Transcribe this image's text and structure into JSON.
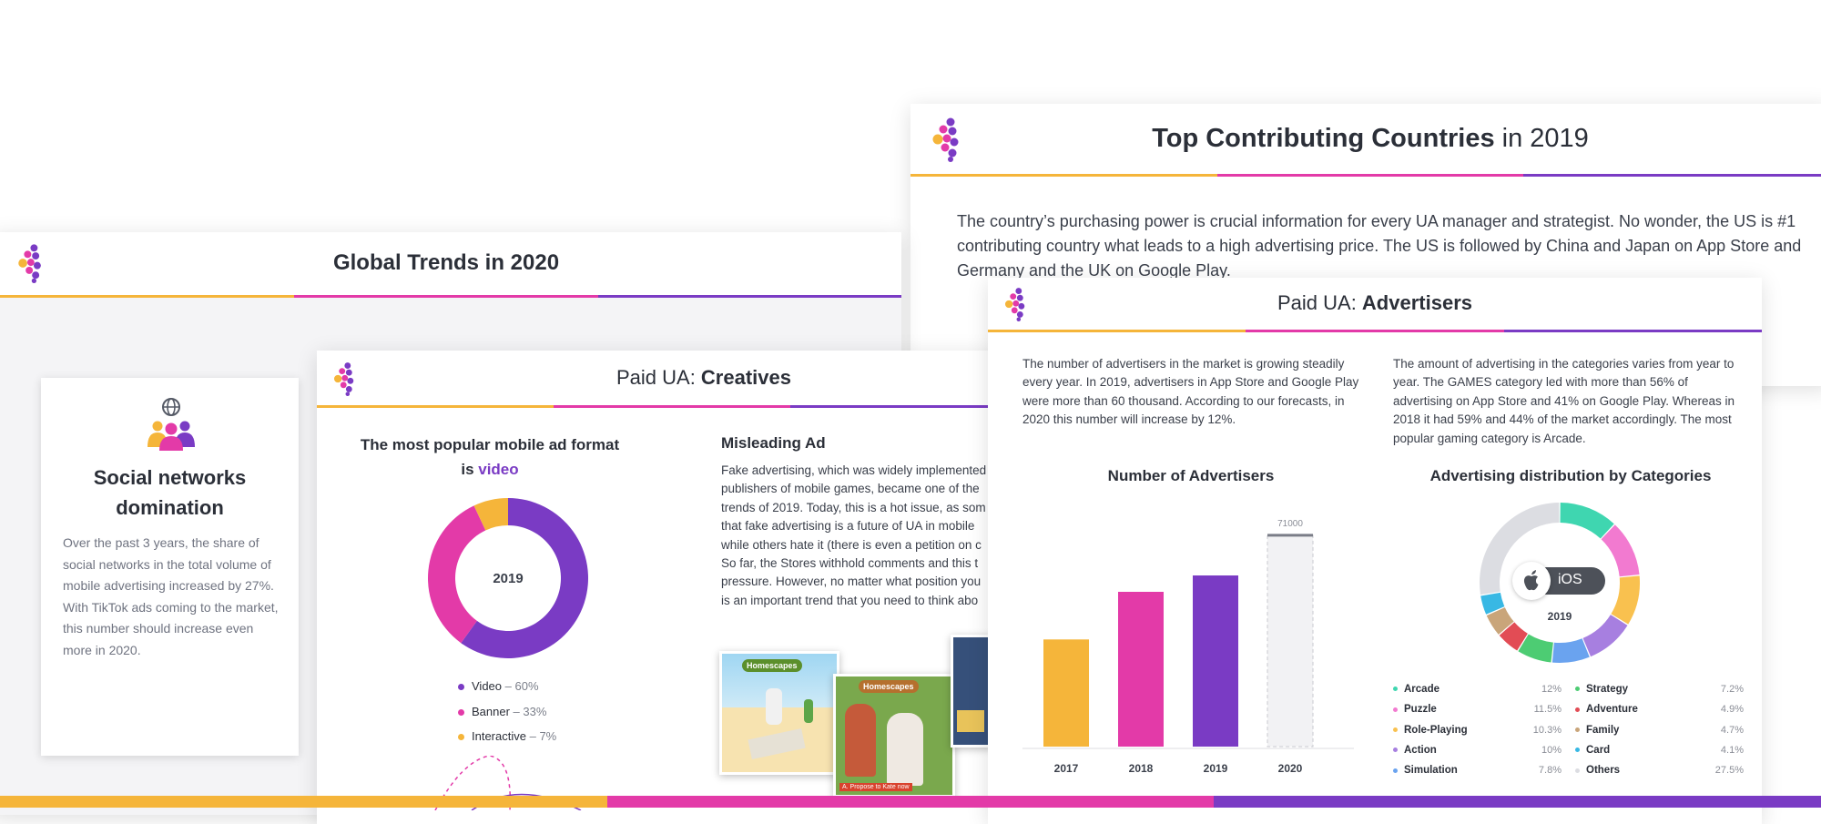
{
  "colors": {
    "yellow": "#f5b53a",
    "pink": "#e33aa8",
    "purple": "#7a3bc4"
  },
  "icons": {
    "logo": "brand-logo-icon",
    "globe": "globe-icon",
    "people": "people-group-icon",
    "apple": "apple-icon"
  },
  "card_countries": {
    "title_bold": "Top Contributing Countries",
    "title_rest": " in 2019",
    "text": "The country’s purchasing power is crucial information for every UA manager and strategist. No wonder, the US is #1 contributing country what leads to a high advertising price. The US is followed by China and Japan on App Store and Germany and the UK on Google Play."
  },
  "card_global": {
    "title": "Global Trends in 2020",
    "social_title": "Social networks domination",
    "social_text": "Over the past 3 years, the share of social networks in the total volume of mobile advertising increased by 27%. With TikTok ads coming to the market, this number should increase even more in 2020."
  },
  "card_creatives": {
    "title_rest": "Paid UA: ",
    "title_bold": "Creatives",
    "donut_title_1": "The most popular mobile ad format",
    "donut_title_2a": "is ",
    "donut_title_2b": "video",
    "donut_center": "2019",
    "legend": [
      {
        "name": "Video",
        "value": "– 60%",
        "color": "#7a3bc4"
      },
      {
        "name": "Banner",
        "value": "– 33%",
        "color": "#e33aa8"
      },
      {
        "name": "Interactive",
        "value": "– 7%",
        "color": "#f5b53a"
      }
    ],
    "misleading_title": "Misleading Ad",
    "misleading_lines": [
      "Fake advertising, which was widely implemented",
      "publishers of mobile games, became one of the",
      "trends of 2019. Today, this is a hot issue, as som",
      "that fake advertising is a future of UA in mobile",
      "while others hate it (there is even a petition on c",
      "So far, the Stores withhold comments and this t",
      "pressure. However, no matter what position you",
      "is an important trend that you need to think abo"
    ],
    "game_title": "Homescapes",
    "game_caption": "A. Propose to Kate now"
  },
  "card_advertisers": {
    "title_rest": "Paid UA: ",
    "title_bold": "Advertisers",
    "left_text": "The number of advertisers in the market is growing steadily every year. In 2019, advertisers in App Store and Google Play were more than 60 thousand. According to our forecasts, in 2020 this number will increase by 12%.",
    "right_text": "The amount of advertising in the categories varies from year to year. The GAMES category led with more than 56% of advertising on App Store and 41% on Google Play. Whereas in 2018 it had 59% and 44% of the market accordingly. The most popular gaming category is Arcade.",
    "donut_label": "iOS",
    "donut_year": "2019"
  },
  "chart_data": [
    {
      "type": "bar",
      "title": "Number of Advertisers",
      "categories": [
        "2017",
        "2018",
        "2019",
        "2020"
      ],
      "values": [
        36000,
        52000,
        57500,
        71000
      ],
      "value_labels": [
        "",
        "",
        "",
        "71000"
      ],
      "colors": [
        "#f5b53a",
        "#e33aa8",
        "#7a3bc4",
        "#f2f2f4"
      ],
      "ylim": [
        0,
        78000
      ],
      "grid": false
    },
    {
      "type": "pie",
      "title": "Advertising distribution by Categories",
      "slices": [
        {
          "name": "Arcade",
          "value_label": "12%",
          "value": 12,
          "color": "#3fd6b0"
        },
        {
          "name": "Puzzle",
          "value_label": "11.5%",
          "value": 11.5,
          "color": "#f27ad0"
        },
        {
          "name": "Role-Playing",
          "value_label": "10.3%",
          "value": 10.3,
          "color": "#f9c14f"
        },
        {
          "name": "Action",
          "value_label": "10%",
          "value": 10,
          "color": "#a77fe0"
        },
        {
          "name": "Simulation",
          "value_label": "7.8%",
          "value": 7.8,
          "color": "#6aa3ef"
        },
        {
          "name": "Strategy",
          "value_label": "7.2%",
          "value": 7.2,
          "color": "#4dcc73"
        },
        {
          "name": "Adventure",
          "value_label": "4.9%",
          "value": 4.9,
          "color": "#e24c55"
        },
        {
          "name": "Family",
          "value_label": "4.7%",
          "value": 4.7,
          "color": "#c9a57a"
        },
        {
          "name": "Card",
          "value_label": "4.1%",
          "value": 4.1,
          "color": "#38b8e4"
        },
        {
          "name": "Others",
          "value_label": "27.5%",
          "value": 27.5,
          "color": "#dcdde2"
        }
      ]
    },
    {
      "type": "pie",
      "title": "",
      "slices": [
        {
          "name": "Video",
          "value": 60,
          "color": "#7a3bc4"
        },
        {
          "name": "Banner",
          "value": 33,
          "color": "#e33aa8"
        },
        {
          "name": "Interactive",
          "value": 7,
          "color": "#f5b53a"
        }
      ]
    }
  ]
}
